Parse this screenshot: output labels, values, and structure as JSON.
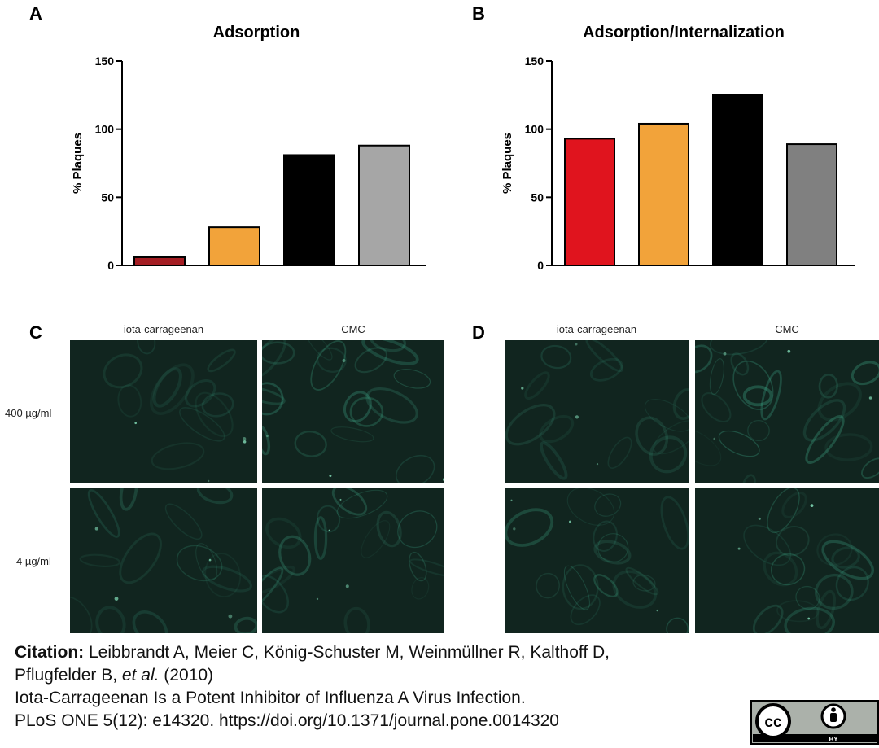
{
  "panels": {
    "A": "A",
    "B": "B",
    "C": "C",
    "D": "D"
  },
  "chart_data": [
    {
      "type": "bar",
      "title": "Adsorption",
      "ylabel": "% Plaques",
      "xlabel": "",
      "ylim": [
        0,
        150
      ],
      "yticks": [
        "0",
        "50",
        "100",
        "150"
      ],
      "values": [
        6,
        28,
        81,
        88
      ],
      "colors": [
        "#a41d23",
        "#f2a33a",
        "#000000",
        "#a6a6a6"
      ]
    },
    {
      "type": "bar",
      "title": "Adsorption/Internalization",
      "ylabel": "% Plaques",
      "xlabel": "",
      "ylim": [
        0,
        150
      ],
      "yticks": [
        "0",
        "50",
        "100",
        "150"
      ],
      "values": [
        93,
        104,
        125,
        89
      ],
      "colors": [
        "#e0141e",
        "#f2a33a",
        "#000000",
        "#808080"
      ]
    }
  ],
  "micro": {
    "col1": "iota-carrageenan",
    "col2": "CMC",
    "row1": "400 µg/ml",
    "row2": "4 µg/ml"
  },
  "citation": {
    "label": "Citation:",
    "authors1": "Leibbrandt A, Meier C, König-Schuster M, Weinmüllner R, Kalthoff D,",
    "authors2": "Pflugfelder B,",
    "etal": "et al.",
    "year": "(2010)",
    "title": "Iota-Carrageenan Is a Potent Inhibitor of Influenza A Virus Infection.",
    "journal": "PLoS ONE 5(12): e14320. https://doi.org/10.1371/journal.pone.0014320"
  },
  "license": {
    "cc": "cc",
    "by": "BY"
  }
}
